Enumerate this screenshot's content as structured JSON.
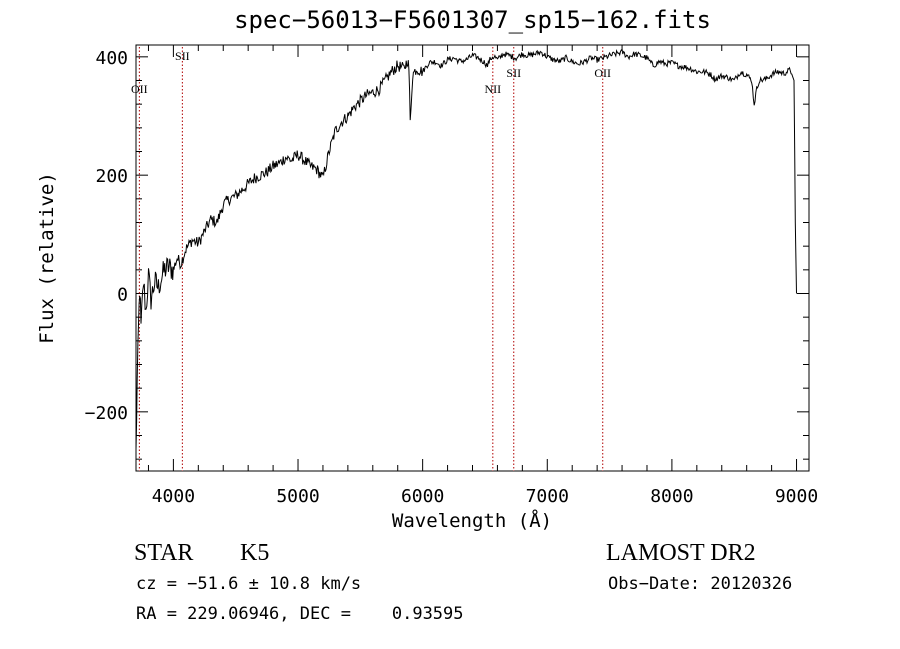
{
  "chart_data": {
    "type": "line",
    "title": "spec−56013−F5601307_sp15−162.fits",
    "xlabel": "Wavelength (Å)",
    "ylabel": "Flux (relative)",
    "xlim": [
      3700,
      9100
    ],
    "ylim": [
      -300,
      420
    ],
    "x_ticks": [
      4000,
      5000,
      6000,
      7000,
      8000,
      9000
    ],
    "y_ticks": [
      -200,
      0,
      200,
      400
    ],
    "grid": false,
    "series": [
      {
        "x": [
          3700,
          3710,
          3720,
          3730,
          3740,
          3760,
          3780,
          3800,
          3820,
          3850,
          3880,
          3900,
          3930,
          3960,
          4000,
          4030,
          4060,
          4100,
          4150,
          4200,
          4250,
          4300,
          4350,
          4400,
          4450,
          4500,
          4550,
          4600,
          4650,
          4700,
          4750,
          4800,
          4850,
          4900,
          4950,
          5000,
          5050,
          5100,
          5150,
          5200,
          5250,
          5300,
          5350,
          5400,
          5450,
          5500,
          5550,
          5600,
          5650,
          5700,
          5750,
          5800,
          5850,
          5880,
          5890,
          5900,
          5920,
          5950,
          6000,
          6050,
          6100,
          6150,
          6200,
          6250,
          6300,
          6350,
          6400,
          6450,
          6500,
          6520,
          6540,
          6560,
          6580,
          6600,
          6650,
          6700,
          6750,
          6800,
          6850,
          6900,
          6950,
          7000,
          7050,
          7100,
          7150,
          7200,
          7250,
          7300,
          7350,
          7400,
          7450,
          7500,
          7550,
          7600,
          7650,
          7700,
          7750,
          7800,
          7850,
          7900,
          7950,
          8000,
          8050,
          8100,
          8150,
          8200,
          8250,
          8300,
          8350,
          8400,
          8450,
          8500,
          8550,
          8600,
          8640,
          8660,
          8680,
          8700,
          8750,
          8800,
          8850,
          8900,
          8950,
          8980,
          8990,
          9000
        ],
        "y": [
          -270,
          -150,
          -60,
          10,
          -60,
          20,
          -30,
          30,
          -10,
          20,
          10,
          25,
          40,
          45,
          40,
          60,
          50,
          75,
          90,
          85,
          105,
          125,
          120,
          150,
          160,
          165,
          175,
          185,
          195,
          200,
          205,
          215,
          220,
          230,
          225,
          235,
          225,
          215,
          210,
          195,
          240,
          275,
          290,
          300,
          315,
          325,
          335,
          340,
          345,
          360,
          375,
          385,
          380,
          395,
          380,
          290,
          370,
          380,
          375,
          390,
          392,
          385,
          395,
          398,
          392,
          395,
          402,
          398,
          390,
          385,
          395,
          400,
          400,
          395,
          405,
          402,
          398,
          405,
          402,
          405,
          408,
          400,
          395,
          392,
          398,
          392,
          388,
          392,
          398,
          395,
          398,
          402,
          405,
          408,
          400,
          405,
          402,
          398,
          385,
          392,
          388,
          390,
          385,
          383,
          380,
          375,
          375,
          372,
          362,
          368,
          365,
          360,
          375,
          370,
          360,
          320,
          345,
          360,
          362,
          370,
          375,
          372,
          378,
          360,
          120,
          0
        ]
      }
    ],
    "lines": [
      {
        "label": "OII",
        "x": 3727
      },
      {
        "label": "SII",
        "x": 4072
      },
      {
        "label": "NII",
        "x": 6563
      },
      {
        "label": "SII",
        "x": 6731
      },
      {
        "label": "OII",
        "x": 7445
      }
    ]
  },
  "info": {
    "class_label": "STAR",
    "subclass": "K5",
    "survey": "LAMOST DR2",
    "cz": "cz = −51.6 ± 10.8 km/s",
    "obs_date": "Obs−Date: 20120326",
    "radec": "RA = 229.06946, DEC =    0.93595"
  }
}
